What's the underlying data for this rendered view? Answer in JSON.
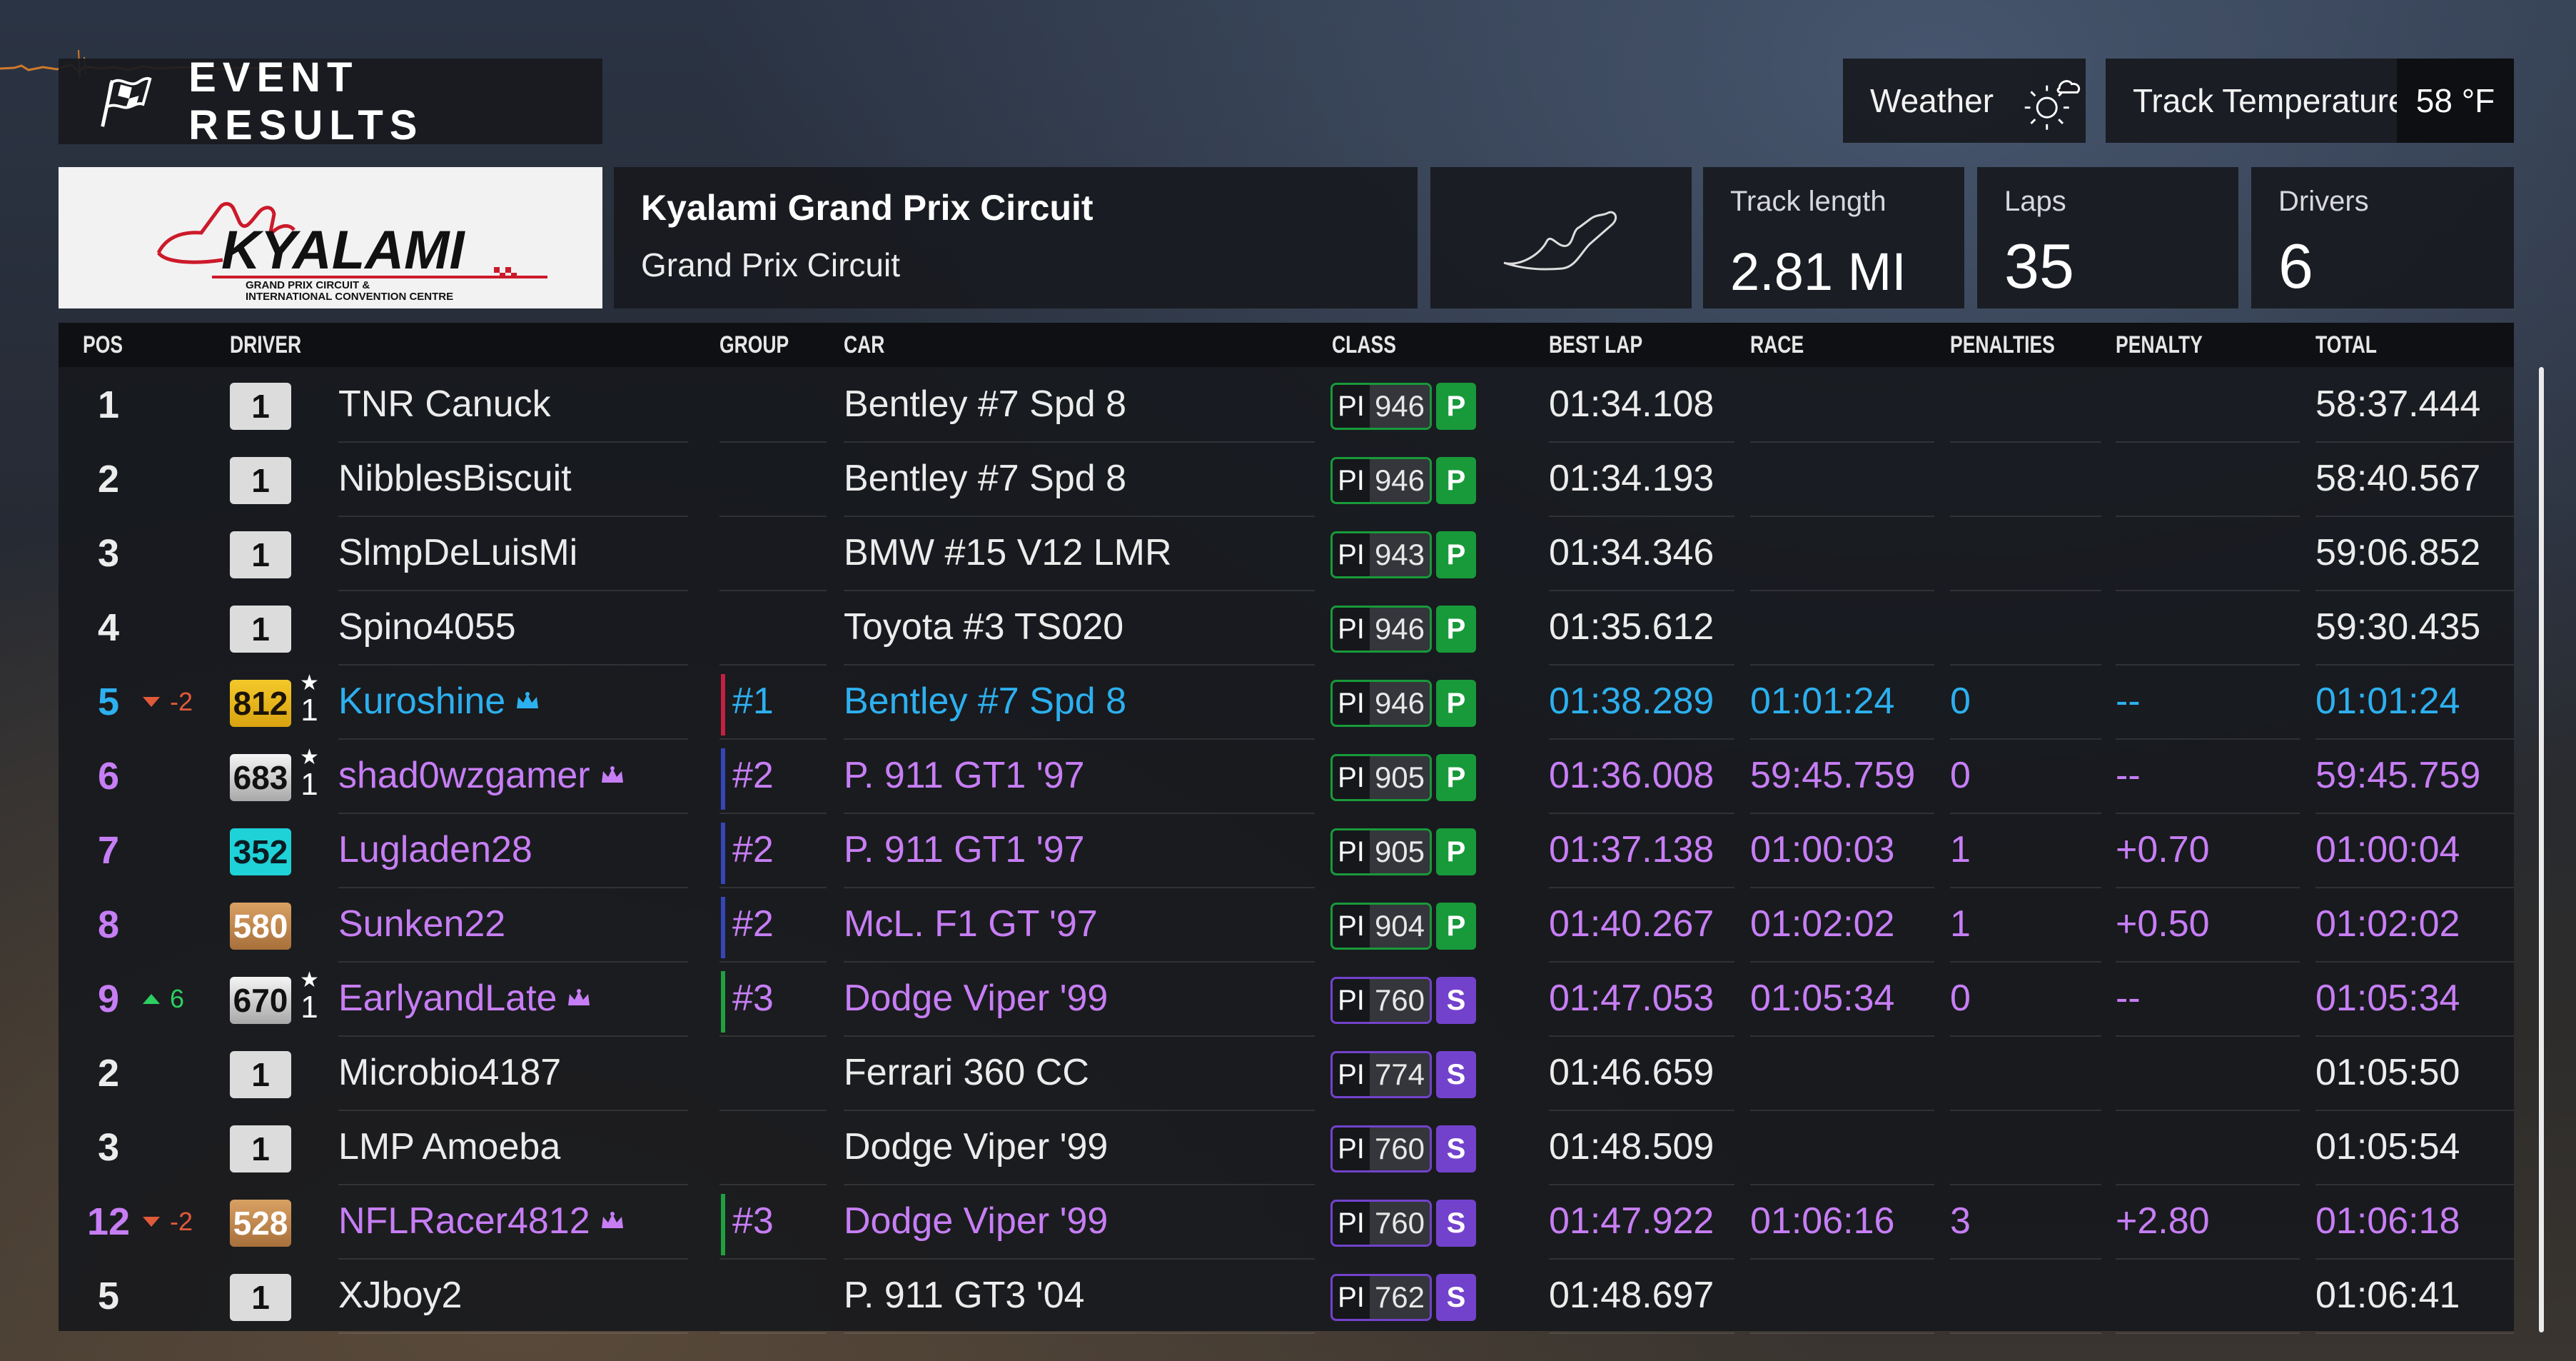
{
  "header": {
    "title": "EVENT RESULTS"
  },
  "weather": {
    "label": "Weather",
    "icon": "partly-cloudy-icon"
  },
  "track_temperature": {
    "label": "Track Temperature",
    "value": "58 °F"
  },
  "logo": {
    "main": "KYALAMI",
    "line1": "GRAND PRIX CIRCUIT &",
    "line2": "INTERNATIONAL CONVENTION CENTRE"
  },
  "track": {
    "name": "Kyalami Grand Prix Circuit",
    "layout": "Grand Prix Circuit"
  },
  "stats": {
    "length": {
      "label": "Track length",
      "value": "2.81 MI"
    },
    "laps": {
      "label": "Laps",
      "value": "35"
    },
    "drivers": {
      "label": "Drivers",
      "value": "6"
    }
  },
  "columns": {
    "pos": "POS",
    "driver": "DRIVER",
    "group": "GROUP",
    "car": "CAR",
    "class": "CLASS",
    "best_lap": "BEST LAP",
    "race": "RACE",
    "penalties": "PENALTIES",
    "penalty": "PENALTY",
    "total": "TOTAL"
  },
  "colors": {
    "white": "#ececec",
    "blue": "#2db0ef",
    "purple": "#c77ef5",
    "class_p": "#189a3a",
    "class_s": "#7342cc",
    "group1": "#c42040",
    "group2": "#3446b8",
    "group3": "#20a040"
  },
  "rows": [
    {
      "pos": "1",
      "delta": "",
      "badge": "1",
      "badge_style": "white",
      "star": false,
      "star_num": "",
      "driver": "TNR Canuck",
      "crown": false,
      "group": "",
      "group_color": "",
      "car": "Bentley #7 Spd 8",
      "pi_label": "PI",
      "pi": "946",
      "class": "P",
      "best_lap": "01:34.108",
      "race": "",
      "penalties": "",
      "penalty": "",
      "total": "58:37.444",
      "color": "white"
    },
    {
      "pos": "2",
      "delta": "",
      "badge": "1",
      "badge_style": "white",
      "star": false,
      "star_num": "",
      "driver": "NibblesBiscuit",
      "crown": false,
      "group": "",
      "group_color": "",
      "car": "Bentley #7 Spd 8",
      "pi_label": "PI",
      "pi": "946",
      "class": "P",
      "best_lap": "01:34.193",
      "race": "",
      "penalties": "",
      "penalty": "",
      "total": "58:40.567",
      "color": "white"
    },
    {
      "pos": "3",
      "delta": "",
      "badge": "1",
      "badge_style": "white",
      "star": false,
      "star_num": "",
      "driver": "SlmpDeLuisMi",
      "crown": false,
      "group": "",
      "group_color": "",
      "car": "BMW #15 V12 LMR",
      "pi_label": "PI",
      "pi": "943",
      "class": "P",
      "best_lap": "01:34.346",
      "race": "",
      "penalties": "",
      "penalty": "",
      "total": "59:06.852",
      "color": "white"
    },
    {
      "pos": "4",
      "delta": "",
      "badge": "1",
      "badge_style": "white",
      "star": false,
      "star_num": "",
      "driver": "Spino4055",
      "crown": false,
      "group": "",
      "group_color": "",
      "car": "Toyota #3 TS020",
      "pi_label": "PI",
      "pi": "946",
      "class": "P",
      "best_lap": "01:35.612",
      "race": "",
      "penalties": "",
      "penalty": "",
      "total": "59:30.435",
      "color": "white"
    },
    {
      "pos": "5",
      "delta": "-2",
      "delta_dir": "down",
      "badge": "812",
      "badge_style": "gold",
      "star": true,
      "star_num": "1",
      "driver": "Kuroshine",
      "crown": true,
      "group": "#1",
      "group_color": "group1",
      "car": "Bentley #7 Spd 8",
      "pi_label": "PI",
      "pi": "946",
      "class": "P",
      "best_lap": "01:38.289",
      "race": "01:01:24",
      "penalties": "0",
      "penalty": "--",
      "total": "01:01:24",
      "color": "blue"
    },
    {
      "pos": "6",
      "delta": "",
      "badge": "683",
      "badge_style": "silver",
      "star": true,
      "star_num": "1",
      "driver": "shad0wzgamer",
      "crown": true,
      "group": "#2",
      "group_color": "group2",
      "car": "P. 911 GT1 '97",
      "pi_label": "PI",
      "pi": "905",
      "class": "P",
      "best_lap": "01:36.008",
      "race": "59:45.759",
      "penalties": "0",
      "penalty": "--",
      "total": "59:45.759",
      "color": "purple"
    },
    {
      "pos": "7",
      "delta": "",
      "badge": "352",
      "badge_style": "cyan",
      "star": false,
      "star_num": "",
      "driver": "Lugladen28",
      "crown": false,
      "group": "#2",
      "group_color": "group2",
      "car": "P. 911 GT1 '97",
      "pi_label": "PI",
      "pi": "905",
      "class": "P",
      "best_lap": "01:37.138",
      "race": "01:00:03",
      "penalties": "1",
      "penalty": "+0.70",
      "total": "01:00:04",
      "color": "purple"
    },
    {
      "pos": "8",
      "delta": "",
      "badge": "580",
      "badge_style": "bronze",
      "star": false,
      "star_num": "",
      "driver": "Sunken22",
      "crown": false,
      "group": "#2",
      "group_color": "group2",
      "car": "McL. F1 GT '97",
      "pi_label": "PI",
      "pi": "904",
      "class": "P",
      "best_lap": "01:40.267",
      "race": "01:02:02",
      "penalties": "1",
      "penalty": "+0.50",
      "total": "01:02:02",
      "color": "purple"
    },
    {
      "pos": "9",
      "delta": "6",
      "delta_dir": "up",
      "badge": "670",
      "badge_style": "silver",
      "star": true,
      "star_num": "1",
      "driver": "EarlyandLate",
      "crown": true,
      "group": "#3",
      "group_color": "group3",
      "car": "Dodge Viper '99",
      "pi_label": "PI",
      "pi": "760",
      "class": "S",
      "best_lap": "01:47.053",
      "race": "01:05:34",
      "penalties": "0",
      "penalty": "--",
      "total": "01:05:34",
      "color": "purple"
    },
    {
      "pos": "2",
      "delta": "",
      "badge": "1",
      "badge_style": "white",
      "star": false,
      "star_num": "",
      "driver": "Microbio4187",
      "crown": false,
      "group": "",
      "group_color": "",
      "car": "Ferrari 360 CC",
      "pi_label": "PI",
      "pi": "774",
      "class": "S",
      "best_lap": "01:46.659",
      "race": "",
      "penalties": "",
      "penalty": "",
      "total": "01:05:50",
      "color": "white"
    },
    {
      "pos": "3",
      "delta": "",
      "badge": "1",
      "badge_style": "white",
      "star": false,
      "star_num": "",
      "driver": "LMP Amoeba",
      "crown": false,
      "group": "",
      "group_color": "",
      "car": "Dodge Viper '99",
      "pi_label": "PI",
      "pi": "760",
      "class": "S",
      "best_lap": "01:48.509",
      "race": "",
      "penalties": "",
      "penalty": "",
      "total": "01:05:54",
      "color": "white"
    },
    {
      "pos": "12",
      "delta": "-2",
      "delta_dir": "down",
      "badge": "528",
      "badge_style": "bronze",
      "star": false,
      "star_num": "",
      "driver": "NFLRacer4812",
      "crown": true,
      "group": "#3",
      "group_color": "group3",
      "car": "Dodge Viper '99",
      "pi_label": "PI",
      "pi": "760",
      "class": "S",
      "best_lap": "01:47.922",
      "race": "01:06:16",
      "penalties": "3",
      "penalty": "+2.80",
      "total": "01:06:18",
      "color": "purple"
    },
    {
      "pos": "5",
      "delta": "",
      "badge": "1",
      "badge_style": "white",
      "star": false,
      "star_num": "",
      "driver": "XJboy2",
      "crown": false,
      "group": "",
      "group_color": "",
      "car": "P. 911 GT3 '04",
      "pi_label": "PI",
      "pi": "762",
      "class": "S",
      "best_lap": "01:48.697",
      "race": "",
      "penalties": "",
      "penalty": "",
      "total": "01:06:41",
      "color": "white"
    }
  ]
}
